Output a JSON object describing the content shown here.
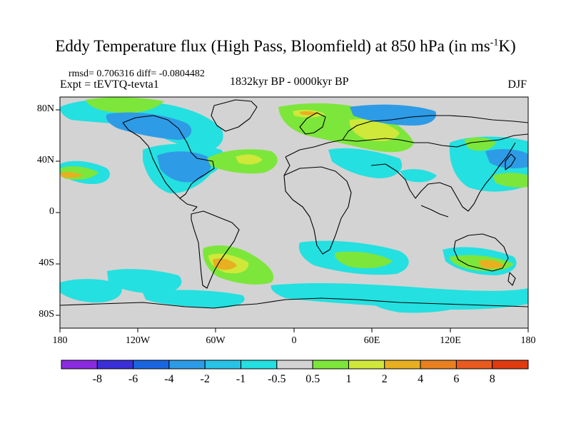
{
  "title": {
    "main": "Eddy Temperature flux (High Pass, Bloomfield) at 850 hPa (in ms",
    "sup": "-1",
    "unit_end": "K)"
  },
  "stats": "rmsd= 0.706316 diff= -0.0804482",
  "expt": "Expt = tEVTQ-tevta1",
  "period": "1832kyr BP - 0000kyr BP",
  "season": "DJF",
  "lat_ticks": [
    "80N",
    "40N",
    "0",
    "40S",
    "80S"
  ],
  "lon_ticks": [
    "180",
    "120W",
    "60W",
    "0",
    "60E",
    "120E",
    "180"
  ],
  "colorbar": {
    "labels": [
      "-8",
      "-6",
      "-4",
      "-2",
      "-1",
      "-0.5",
      "0.5",
      "1",
      "2",
      "4",
      "6",
      "8"
    ],
    "colors": [
      "#8a2be2",
      "#3a2fd8",
      "#1a66e0",
      "#2e9be6",
      "#27c3e6",
      "#24e0e0",
      "#d3d3d3",
      "#7de63a",
      "#cfe83a",
      "#e8b020",
      "#e88020",
      "#e85a20",
      "#e03a10"
    ]
  },
  "palette": {
    "grey": "#d3d3d3",
    "coast": "#000000"
  }
}
